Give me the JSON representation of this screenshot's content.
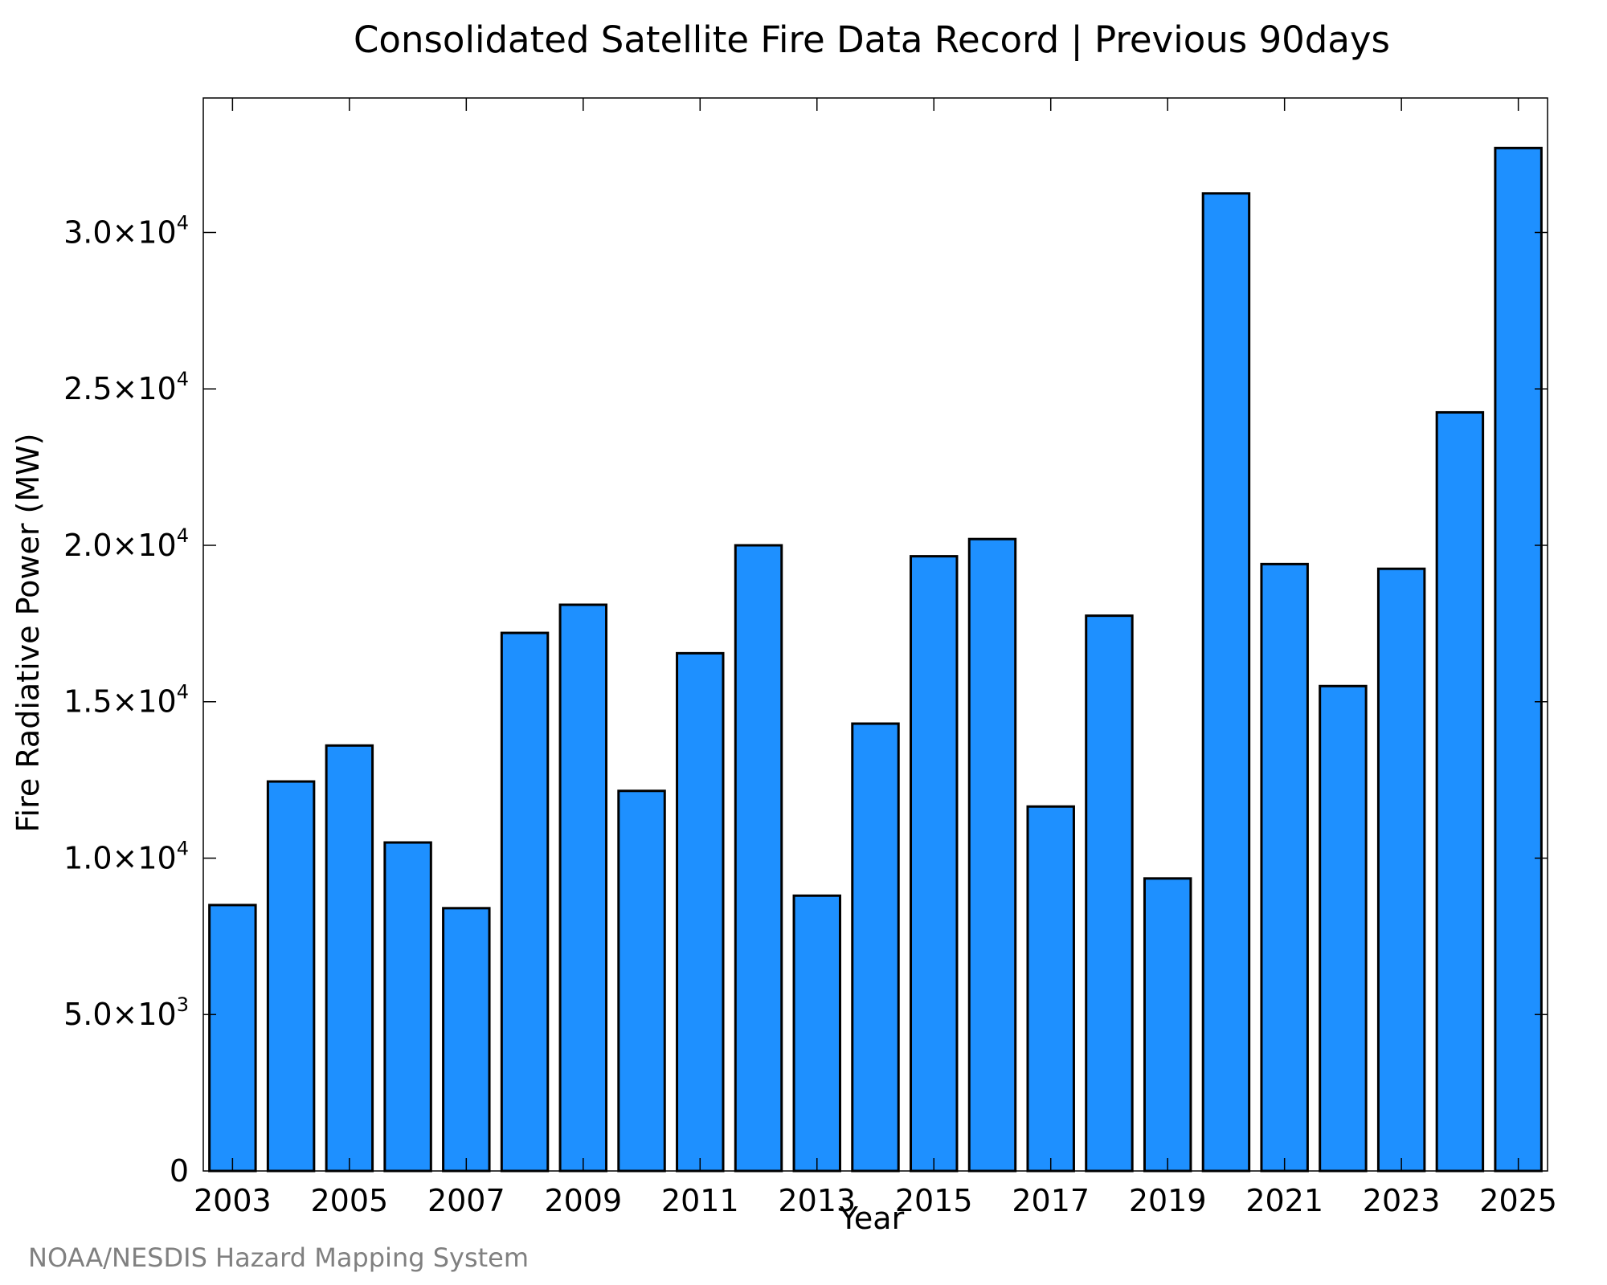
{
  "chart_data": {
    "type": "bar",
    "title": "Consolidated Satellite Fire Data Record | Previous 90days",
    "xlabel": "Year",
    "ylabel": "Fire Radiative Power (MW)",
    "categories": [
      "2003",
      "2004",
      "2005",
      "2006",
      "2007",
      "2008",
      "2009",
      "2010",
      "2011",
      "2012",
      "2013",
      "2014",
      "2015",
      "2016",
      "2017",
      "2018",
      "2019",
      "2020",
      "2021",
      "2022",
      "2023",
      "2024",
      "2025"
    ],
    "values": [
      8500,
      12450,
      13600,
      10500,
      8400,
      17200,
      18100,
      12150,
      16550,
      20000,
      8800,
      14300,
      19650,
      20200,
      11650,
      17750,
      9350,
      31250,
      19400,
      15500,
      19250,
      24250,
      32700
    ],
    "ylim": [
      0,
      34300
    ],
    "x_tick_labels": [
      "2003",
      "2005",
      "2007",
      "2009",
      "2011",
      "2013",
      "2015",
      "2017",
      "2019",
      "2021",
      "2023",
      "2025"
    ],
    "y_ticks": [
      {
        "value": 0,
        "label": "0",
        "base": "0",
        "exp": ""
      },
      {
        "value": 5000,
        "label": "5.0×10^3",
        "base": "5.0×10",
        "exp": "3"
      },
      {
        "value": 10000,
        "label": "1.0×10^4",
        "base": "1.0×10",
        "exp": "4"
      },
      {
        "value": 15000,
        "label": "1.5×10^4",
        "base": "1.5×10",
        "exp": "4"
      },
      {
        "value": 20000,
        "label": "2.0×10^4",
        "base": "2.0×10",
        "exp": "4"
      },
      {
        "value": 25000,
        "label": "2.5×10^4",
        "base": "2.5×10",
        "exp": "4"
      },
      {
        "value": 30000,
        "label": "3.0×10^4",
        "base": "3.0×10",
        "exp": "4"
      }
    ],
    "grid": false,
    "legend": "none",
    "colors": {
      "bar_fill": "#1e90ff",
      "bar_edge": "#000000",
      "credit": "#808080"
    }
  },
  "credit": "NOAA/NESDIS Hazard Mapping System"
}
